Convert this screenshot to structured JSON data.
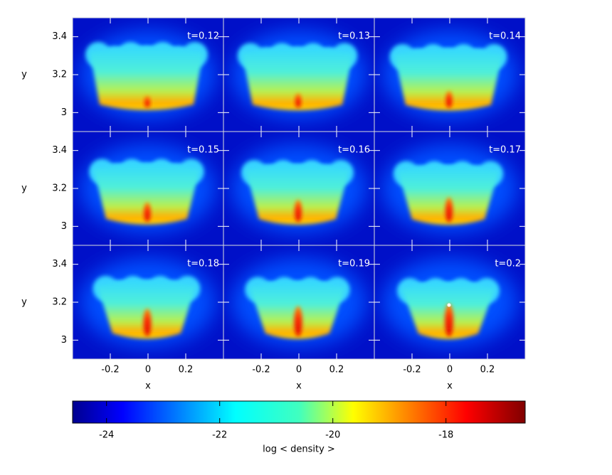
{
  "chart_data": [
    {
      "type": "image",
      "label": "t=0.12",
      "xlim": [
        -0.4,
        0.4
      ],
      "ylim": [
        2.9,
        3.5
      ],
      "xticks": [
        -0.2,
        0,
        0.2
      ],
      "yticks": [
        3,
        3.2,
        3.4
      ],
      "ylabel": "y"
    },
    {
      "type": "image",
      "label": "t=0.13",
      "xlim": [
        -0.4,
        0.4
      ],
      "ylim": [
        2.9,
        3.5
      ],
      "xticks": [
        -0.2,
        0,
        0.2
      ],
      "yticks": [
        3,
        3.2,
        3.4
      ]
    },
    {
      "type": "image",
      "label": "t=0.14",
      "xlim": [
        -0.4,
        0.4
      ],
      "ylim": [
        2.9,
        3.5
      ],
      "xticks": [
        -0.2,
        0,
        0.2
      ],
      "yticks": [
        3,
        3.2,
        3.4
      ]
    },
    {
      "type": "image",
      "label": "t=0.15",
      "xlim": [
        -0.4,
        0.4
      ],
      "ylim": [
        2.9,
        3.5
      ],
      "xticks": [
        -0.2,
        0,
        0.2
      ],
      "yticks": [
        3,
        3.2,
        3.4
      ],
      "ylabel": "y"
    },
    {
      "type": "image",
      "label": "t=0.16",
      "xlim": [
        -0.4,
        0.4
      ],
      "ylim": [
        2.9,
        3.5
      ],
      "xticks": [
        -0.2,
        0,
        0.2
      ],
      "yticks": [
        3,
        3.2,
        3.4
      ]
    },
    {
      "type": "image",
      "label": "t=0.17",
      "xlim": [
        -0.4,
        0.4
      ],
      "ylim": [
        2.9,
        3.5
      ],
      "xticks": [
        -0.2,
        0,
        0.2
      ],
      "yticks": [
        3,
        3.2,
        3.4
      ]
    },
    {
      "type": "image",
      "label": "t=0.18",
      "xlim": [
        -0.4,
        0.4
      ],
      "ylim": [
        2.9,
        3.5
      ],
      "xticks": [
        -0.2,
        0,
        0.2
      ],
      "yticks": [
        3,
        3.2,
        3.4
      ],
      "ylabel": "y",
      "xlabel": "x"
    },
    {
      "type": "image",
      "label": "t=0.19",
      "xlim": [
        -0.4,
        0.4
      ],
      "ylim": [
        2.9,
        3.5
      ],
      "xticks": [
        -0.2,
        0,
        0.2
      ],
      "yticks": [
        3,
        3.2,
        3.4
      ],
      "xlabel": "x"
    },
    {
      "type": "image",
      "label": "t=0.2",
      "xlim": [
        -0.4,
        0.4
      ],
      "ylim": [
        2.9,
        3.5
      ],
      "xticks": [
        -0.2,
        0,
        0.2
      ],
      "yticks": [
        3,
        3.2,
        3.4
      ],
      "xlabel": "x"
    }
  ],
  "colorbar": {
    "label": "log < density >",
    "clim": [
      -24.6,
      -16.6
    ],
    "ticks": [
      -24,
      -22,
      -20,
      -18
    ],
    "colormap": "jet"
  }
}
